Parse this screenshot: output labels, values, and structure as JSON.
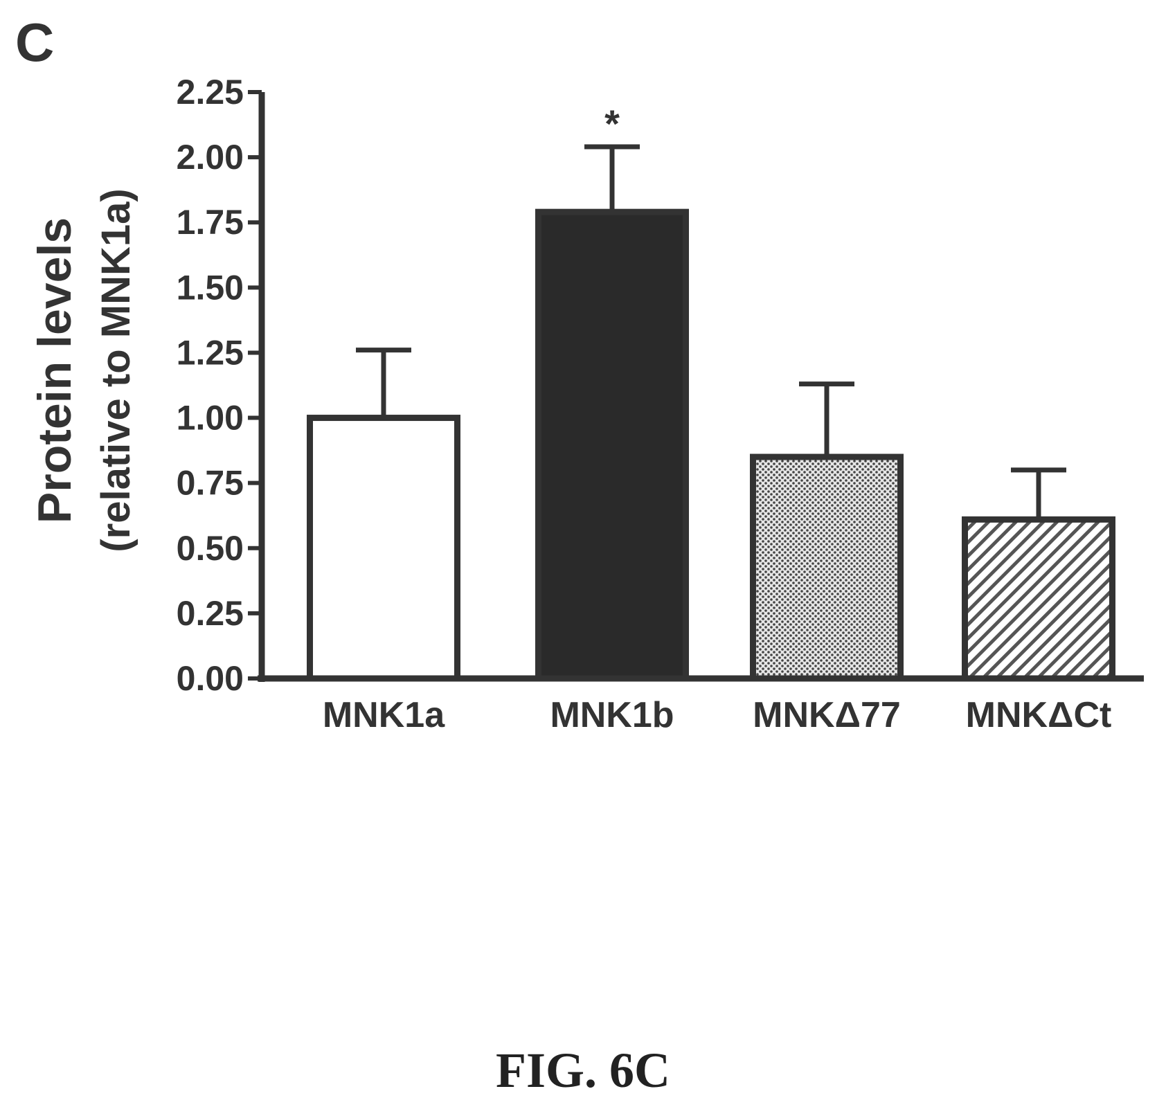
{
  "panel_label": "C",
  "figure_caption": "FIG. 6C",
  "chart_data": {
    "type": "bar",
    "categories": [
      "MNK1a",
      "MNK1b",
      "MNKΔ77",
      "MNKΔCt"
    ],
    "values": [
      1.0,
      1.79,
      0.85,
      0.61
    ],
    "errors": [
      0.26,
      0.25,
      0.28,
      0.19
    ],
    "fills": [
      "white",
      "black",
      "dotted",
      "hatched"
    ],
    "annotations": [
      "",
      "*",
      "",
      ""
    ],
    "ylabel_line1": "Protein levels",
    "ylabel_line2": "(relative to MNK1a)",
    "ylim": [
      0,
      2.25
    ],
    "yticks": [
      0.0,
      0.25,
      0.5,
      0.75,
      1.0,
      1.25,
      1.5,
      1.75,
      2.0,
      2.25
    ],
    "ytick_labels": [
      "0.00",
      "0.25",
      "0.50",
      "0.75",
      "1.00",
      "1.25",
      "1.50",
      "1.75",
      "2.00",
      "2.25"
    ],
    "grid": false,
    "colors": {
      "ink": "#333333",
      "white_bar": "#ffffff",
      "black_bar": "#2a2a2a",
      "dot_bar": "#9a9a9a"
    }
  }
}
